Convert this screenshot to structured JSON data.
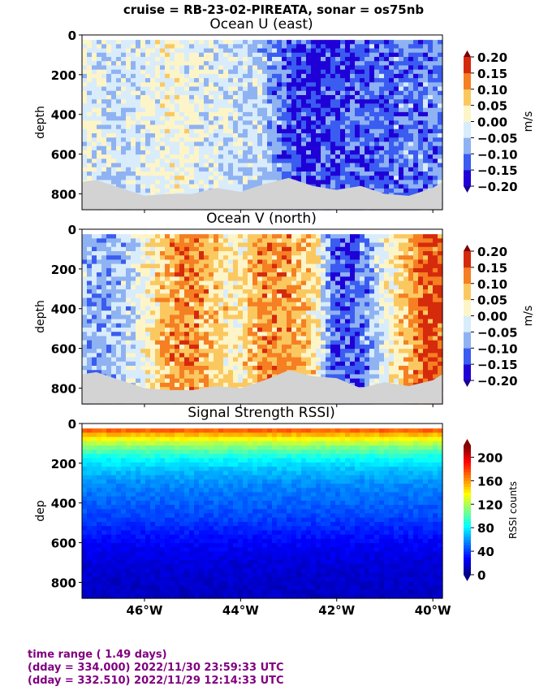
{
  "suptitle": "cruise = RB-23-02-PIREATA,  sonar = os75nb",
  "footer": {
    "line1": "time range ( 1.49 days)",
    "line2": "(dday = 334.000) 2022/11/30 23:59:33 UTC",
    "line3": "(dday = 332.510) 2022/11/29 12:14:33 UTC"
  },
  "chart_data": [
    {
      "type": "heatmap",
      "title": "Ocean U (east)",
      "ylabel": "depth",
      "xlim": [
        -47.3,
        -39.8
      ],
      "ylim": [
        880,
        0
      ],
      "yticks": [
        0,
        200,
        400,
        600,
        800
      ],
      "xticks": [
        -46,
        -44,
        -42,
        -40
      ],
      "xticklabels": [],
      "colorbar": {
        "label": "m/s",
        "range": [
          -0.2,
          0.2
        ],
        "ticks": [
          0.2,
          0.15,
          0.1,
          0.05,
          0.0,
          -0.05,
          -0.1,
          -0.15,
          -0.2
        ],
        "ticklabels": [
          "0.20",
          "0.15",
          "0.10",
          "0.05",
          "0.00",
          "−0.05",
          "−0.10",
          "−0.15",
          "−0.20"
        ],
        "colors": [
          "#1f00d6",
          "#3a5cf0",
          "#8fb2f2",
          "#d8ecfb",
          "#fdf5c8",
          "#fbc860",
          "#f57f22",
          "#d52a0c"
        ]
      },
      "field_pattern": [
        [
          -47.3,
          0.0
        ],
        [
          -46.5,
          -0.04
        ],
        [
          -45.5,
          0.01
        ],
        [
          -44.5,
          -0.02
        ],
        [
          -43.5,
          -0.05
        ],
        [
          -43.0,
          -0.13
        ],
        [
          -42.5,
          -0.17
        ],
        [
          -42.0,
          -0.14
        ],
        [
          -41.0,
          -0.12
        ],
        [
          -40.0,
          -0.1
        ],
        [
          -39.8,
          -0.08
        ]
      ],
      "bottom_depth": [
        [
          -47.3,
          740
        ],
        [
          -47.0,
          730
        ],
        [
          -46.5,
          770
        ],
        [
          -46.0,
          810
        ],
        [
          -45.5,
          800
        ],
        [
          -45.0,
          800
        ],
        [
          -44.5,
          770
        ],
        [
          -44.0,
          790
        ],
        [
          -43.5,
          750
        ],
        [
          -43.0,
          720
        ],
        [
          -42.5,
          760
        ],
        [
          -42.0,
          780
        ],
        [
          -41.5,
          760
        ],
        [
          -41.0,
          800
        ],
        [
          -40.5,
          810
        ],
        [
          -40.0,
          770
        ],
        [
          -39.8,
          740
        ]
      ]
    },
    {
      "type": "heatmap",
      "title": "Ocean V (north)",
      "ylabel": "depth",
      "xlim": [
        -47.3,
        -39.8
      ],
      "ylim": [
        880,
        0
      ],
      "yticks": [
        0,
        200,
        400,
        600,
        800
      ],
      "xticks": [
        -46,
        -44,
        -42,
        -40
      ],
      "xticklabels": [],
      "colorbar": {
        "label": "m/s",
        "range": [
          -0.2,
          0.2
        ],
        "ticks": [
          0.2,
          0.15,
          0.1,
          0.05,
          0.0,
          -0.05,
          -0.1,
          -0.15,
          -0.2
        ],
        "ticklabels": [
          "0.20",
          "0.15",
          "0.10",
          "0.05",
          "0.00",
          "−0.05",
          "−0.10",
          "−0.15",
          "−0.20"
        ],
        "colors": [
          "#1f00d6",
          "#3a5cf0",
          "#8fb2f2",
          "#d8ecfb",
          "#fdf5c8",
          "#fbc860",
          "#f57f22",
          "#d52a0c"
        ]
      },
      "field_pattern": [
        [
          -47.3,
          -0.06
        ],
        [
          -46.8,
          -0.08
        ],
        [
          -46.3,
          -0.04
        ],
        [
          -45.5,
          0.09
        ],
        [
          -45.0,
          0.12
        ],
        [
          -44.5,
          0.06
        ],
        [
          -44.0,
          0.03
        ],
        [
          -43.5,
          0.11
        ],
        [
          -43.0,
          0.1
        ],
        [
          -42.5,
          0.05
        ],
        [
          -42.0,
          -0.14
        ],
        [
          -41.5,
          -0.12
        ],
        [
          -41.0,
          0.0
        ],
        [
          -40.5,
          0.1
        ],
        [
          -40.0,
          0.17
        ],
        [
          -39.8,
          0.14
        ]
      ],
      "bottom_depth": [
        [
          -47.3,
          730
        ],
        [
          -47.0,
          720
        ],
        [
          -46.5,
          760
        ],
        [
          -46.0,
          800
        ],
        [
          -45.5,
          810
        ],
        [
          -45.0,
          810
        ],
        [
          -44.5,
          790
        ],
        [
          -44.0,
          800
        ],
        [
          -43.5,
          760
        ],
        [
          -43.0,
          710
        ],
        [
          -42.5,
          740
        ],
        [
          -42.0,
          750
        ],
        [
          -41.5,
          800
        ],
        [
          -41.0,
          770
        ],
        [
          -40.5,
          790
        ],
        [
          -40.0,
          760
        ],
        [
          -39.8,
          730
        ]
      ]
    },
    {
      "type": "heatmap",
      "title": "Signal Strength RSSI)",
      "ylabel": "dep",
      "xlim": [
        -47.3,
        -39.8
      ],
      "ylim": [
        880,
        0
      ],
      "yticks": [
        0,
        200,
        400,
        600,
        800
      ],
      "xticks": [
        -46,
        -44,
        -42,
        -40
      ],
      "xticklabels": [
        "46°W",
        "44°W",
        "42°W",
        "40°W"
      ],
      "colorbar": {
        "label": "RSSI counts",
        "range": [
          0,
          220
        ],
        "ticks": [
          200,
          160,
          120,
          80,
          40,
          0
        ],
        "ticklabels": [
          "200",
          "160",
          "120",
          "80",
          "40",
          "0"
        ],
        "colors": [
          "#000080",
          "#0000ff",
          "#0080ff",
          "#00ffff",
          "#80ff80",
          "#ffff00",
          "#ff8000",
          "#ff0000",
          "#800000"
        ]
      },
      "depth_profile": [
        [
          20,
          185
        ],
        [
          60,
          150
        ],
        [
          110,
          115
        ],
        [
          170,
          85
        ],
        [
          230,
          70
        ],
        [
          300,
          58
        ],
        [
          380,
          50
        ],
        [
          450,
          44
        ],
        [
          520,
          36
        ],
        [
          600,
          27
        ],
        [
          700,
          20
        ],
        [
          800,
          16
        ],
        [
          880,
          14
        ]
      ]
    }
  ]
}
